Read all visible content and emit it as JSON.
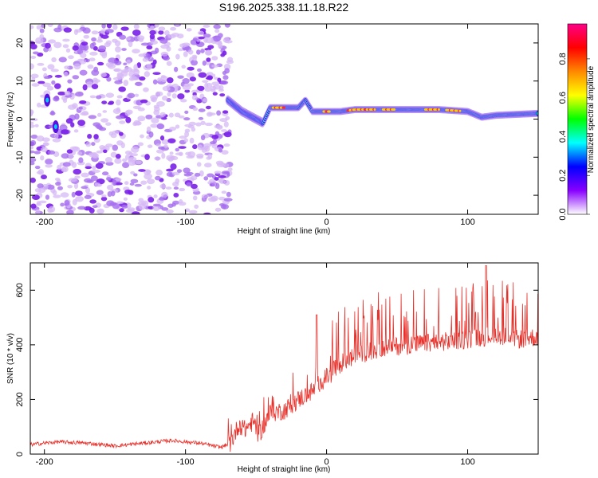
{
  "title": "S196.2025.338.11.18.R22",
  "chart_data": [
    {
      "type": "heatmap",
      "xlabel": "Height of straight line (km)",
      "ylabel": "Frequency (Hz)",
      "xlim": [
        -210,
        150
      ],
      "ylim": [
        -25,
        25
      ],
      "xticks": [
        -200,
        -100,
        0,
        100
      ],
      "yticks": [
        -20,
        -10,
        0,
        10,
        20
      ],
      "xtick_labels": [
        "-200",
        "-100",
        "0",
        "100"
      ],
      "ytick_labels": [
        "-20",
        "-10",
        "0",
        "10",
        "20"
      ],
      "noise_region_x": [
        -210,
        -68
      ],
      "signal_ridge": {
        "x": [
          -70,
          -60,
          -50,
          -45,
          -40,
          -30,
          -20,
          -15,
          -10,
          0,
          10,
          20,
          40,
          60,
          80,
          100,
          110,
          120,
          150
        ],
        "freq_hz": [
          5,
          2,
          0,
          -1,
          3,
          3,
          3,
          5,
          2,
          2,
          2,
          2.5,
          2.5,
          2.5,
          2.5,
          2,
          0.5,
          1,
          1.5
        ]
      },
      "colorbar": {
        "label": "Normalized spectral amplitude",
        "range": [
          0,
          0.98
        ],
        "ticks": [
          "0.0",
          "0.2",
          "0.4",
          "0.6",
          "0.8"
        ],
        "tick_values": [
          0,
          0.2,
          0.4,
          0.6,
          0.8
        ],
        "colors": [
          "#ffffff",
          "#8800ff",
          "#0000ff",
          "#00ffff",
          "#00ff00",
          "#ffff00",
          "#ff8800",
          "#ff0000",
          "#ff0088"
        ]
      }
    },
    {
      "type": "line",
      "xlabel": "Height of straight line (km)",
      "ylabel": "SNR (10 * v/v)",
      "xlim": [
        -210,
        150
      ],
      "ylim": [
        0,
        700
      ],
      "xticks": [
        -200,
        -100,
        0,
        100
      ],
      "yticks": [
        0,
        200,
        400,
        600
      ],
      "xtick_labels": [
        "-200",
        "-100",
        "0",
        "100"
      ],
      "ytick_labels": [
        "0",
        "200",
        "400",
        "600"
      ],
      "line_color": "#e8302a",
      "series": [
        {
          "name": "SNR",
          "x": [
            -210,
            -190,
            -170,
            -150,
            -130,
            -110,
            -90,
            -75,
            -68,
            -62,
            -58,
            -52,
            -48,
            -40,
            -30,
            -20,
            -10,
            -5,
            0,
            10,
            20,
            40,
            60,
            80,
            100,
            113,
            120,
            135,
            150
          ],
          "y": [
            35,
            45,
            40,
            30,
            40,
            50,
            40,
            25,
            40,
            110,
            90,
            120,
            70,
            150,
            160,
            200,
            230,
            260,
            280,
            330,
            360,
            390,
            400,
            410,
            420,
            430,
            440,
            420,
            430
          ]
        }
      ]
    }
  ]
}
